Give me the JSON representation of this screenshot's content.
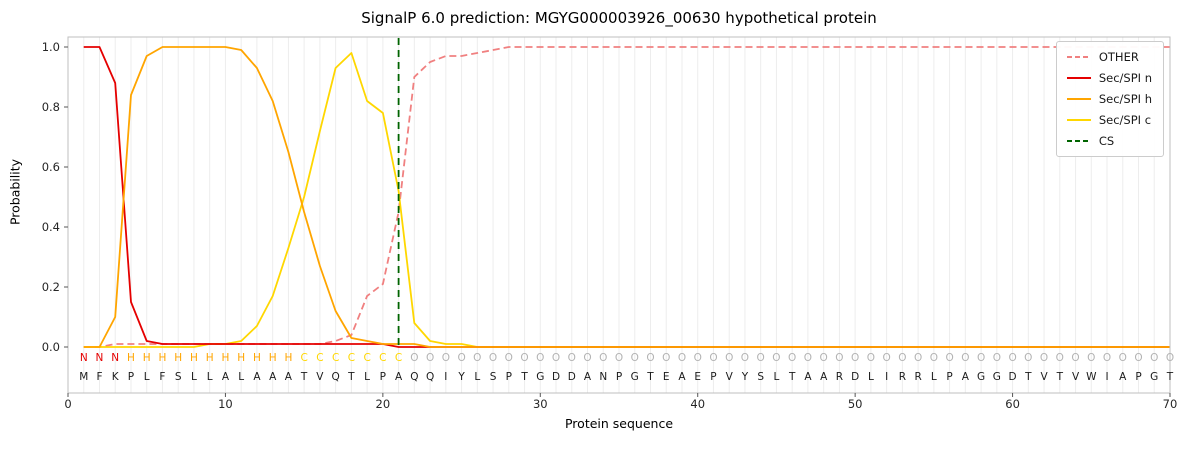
{
  "title": "SignalP 6.0 prediction: MGYG000003926_00630 hypothetical protein",
  "axes": {
    "x_label": "Protein sequence",
    "y_label": "Probability",
    "x_ticks": [
      0,
      10,
      20,
      30,
      40,
      50,
      60,
      70
    ],
    "y_ticks": [
      "0.0",
      "0.2",
      "0.4",
      "0.6",
      "0.8",
      "1.0"
    ]
  },
  "legend": {
    "position": "upper right",
    "items": [
      {
        "label": "OTHER",
        "color": "#f08080",
        "dash": true
      },
      {
        "label": "Sec/SPI n",
        "color": "#e50000",
        "dash": false
      },
      {
        "label": "Sec/SPI h",
        "color": "#ffa500",
        "dash": false
      },
      {
        "label": "Sec/SPI c",
        "color": "#ffd700",
        "dash": false
      },
      {
        "label": "CS",
        "color": "#006400",
        "dash": true
      }
    ]
  },
  "chart_data": {
    "type": "line",
    "title": "SignalP 6.0 prediction: MGYG000003926_00630 hypothetical protein",
    "xlabel": "Protein sequence",
    "ylabel": "Probability",
    "xlim": [
      0,
      70
    ],
    "ylim": [
      0.0,
      1.05
    ],
    "x_start": 1,
    "x_step": 1,
    "grid": "faint vertical gridline at every residue position",
    "legend_position": "upper right",
    "cs_position": 21,
    "sequence": "MFKPLFSLLALAAATVQTLPAQQIYLSPTGDDANPGTEAEPVYSLTAARDLIRRLPAGGDTVTVWIAPGT",
    "regions": [
      {
        "label": "N",
        "start": 1,
        "end": 3
      },
      {
        "label": "H",
        "start": 4,
        "end": 14
      },
      {
        "label": "C",
        "start": 15,
        "end": 21
      },
      {
        "label": "O",
        "start": 22,
        "end": 70
      }
    ],
    "region_colors": {
      "N": "#e50000",
      "H": "#ffa500",
      "C": "#ffd700",
      "O": "#b3b3b3"
    },
    "sequence_color": "#1a1a1a",
    "series": [
      {
        "name": "OTHER",
        "color": "#f08080",
        "style": "dashed",
        "values": [
          0.0,
          0.0,
          0.01,
          0.01,
          0.01,
          0.01,
          0.01,
          0.01,
          0.01,
          0.01,
          0.01,
          0.01,
          0.01,
          0.01,
          0.01,
          0.01,
          0.02,
          0.04,
          0.17,
          0.21,
          0.45,
          0.9,
          0.95,
          0.97,
          0.97,
          0.98,
          0.99,
          1.0,
          1.0,
          1.0,
          1.0,
          1.0,
          1.0,
          1.0,
          1.0,
          1.0,
          1.0,
          1.0,
          1.0,
          1.0,
          1.0,
          1.0,
          1.0,
          1.0,
          1.0,
          1.0,
          1.0,
          1.0,
          1.0,
          1.0,
          1.0,
          1.0,
          1.0,
          1.0,
          1.0,
          1.0,
          1.0,
          1.0,
          1.0,
          1.0,
          1.0,
          1.0,
          1.0,
          1.0,
          1.0,
          1.0,
          1.0,
          1.0,
          1.0,
          1.0
        ]
      },
      {
        "name": "Sec/SPI n",
        "color": "#e50000",
        "style": "solid",
        "values": [
          1.0,
          1.0,
          0.88,
          0.15,
          0.02,
          0.01,
          0.01,
          0.01,
          0.01,
          0.01,
          0.01,
          0.01,
          0.01,
          0.01,
          0.01,
          0.01,
          0.01,
          0.01,
          0.01,
          0.01,
          0.0,
          0.0,
          0.0,
          0.0,
          0.0,
          0.0,
          0.0,
          0.0,
          0.0,
          0.0,
          0.0,
          0.0,
          0.0,
          0.0,
          0.0,
          0.0,
          0.0,
          0.0,
          0.0,
          0.0,
          0.0,
          0.0,
          0.0,
          0.0,
          0.0,
          0.0,
          0.0,
          0.0,
          0.0,
          0.0,
          0.0,
          0.0,
          0.0,
          0.0,
          0.0,
          0.0,
          0.0,
          0.0,
          0.0,
          0.0,
          0.0,
          0.0,
          0.0,
          0.0,
          0.0,
          0.0,
          0.0,
          0.0,
          0.0,
          0.0
        ]
      },
      {
        "name": "Sec/SPI h",
        "color": "#ffa500",
        "style": "solid",
        "values": [
          0.0,
          0.0,
          0.1,
          0.84,
          0.97,
          1.0,
          1.0,
          1.0,
          1.0,
          1.0,
          0.99,
          0.93,
          0.82,
          0.65,
          0.45,
          0.27,
          0.12,
          0.03,
          0.02,
          0.01,
          0.01,
          0.01,
          0.0,
          0.0,
          0.0,
          0.0,
          0.0,
          0.0,
          0.0,
          0.0,
          0.0,
          0.0,
          0.0,
          0.0,
          0.0,
          0.0,
          0.0,
          0.0,
          0.0,
          0.0,
          0.0,
          0.0,
          0.0,
          0.0,
          0.0,
          0.0,
          0.0,
          0.0,
          0.0,
          0.0,
          0.0,
          0.0,
          0.0,
          0.0,
          0.0,
          0.0,
          0.0,
          0.0,
          0.0,
          0.0,
          0.0,
          0.0,
          0.0,
          0.0,
          0.0,
          0.0,
          0.0,
          0.0,
          0.0,
          0.0
        ]
      },
      {
        "name": "Sec/SPI c",
        "color": "#ffd700",
        "style": "solid",
        "values": [
          0.0,
          0.0,
          0.0,
          0.0,
          0.0,
          0.0,
          0.0,
          0.0,
          0.01,
          0.01,
          0.02,
          0.07,
          0.17,
          0.33,
          0.5,
          0.72,
          0.93,
          0.98,
          0.82,
          0.78,
          0.52,
          0.08,
          0.02,
          0.01,
          0.01,
          0.0,
          0.0,
          0.0,
          0.0,
          0.0,
          0.0,
          0.0,
          0.0,
          0.0,
          0.0,
          0.0,
          0.0,
          0.0,
          0.0,
          0.0,
          0.0,
          0.0,
          0.0,
          0.0,
          0.0,
          0.0,
          0.0,
          0.0,
          0.0,
          0.0,
          0.0,
          0.0,
          0.0,
          0.0,
          0.0,
          0.0,
          0.0,
          0.0,
          0.0,
          0.0,
          0.0,
          0.0,
          0.0,
          0.0,
          0.0,
          0.0,
          0.0,
          0.0,
          0.0,
          0.0
        ]
      }
    ]
  }
}
